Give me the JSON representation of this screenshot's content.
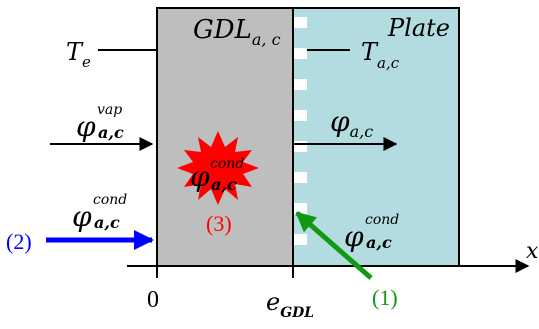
{
  "regions": {
    "gdl": {
      "base": "GDL",
      "sub": "a, c",
      "fill": "#bebebe"
    },
    "plate": {
      "label": "Plate",
      "fill": "#b2dce0"
    }
  },
  "temperatures": {
    "left": {
      "base": "T",
      "sub": "e"
    },
    "right": {
      "base": "T",
      "sub": "a,c"
    }
  },
  "fluxes": {
    "vapor_in": {
      "base": "φ",
      "sub": "a,c",
      "sup": "vap"
    },
    "cond_in": {
      "base": "φ",
      "sub": "a,c",
      "sup": "cond"
    },
    "plate_out": {
      "base": "φ",
      "sub": "a,c"
    },
    "condensation": {
      "base": "φ",
      "sub": "a,c",
      "sup": "cond"
    },
    "plate_cond": {
      "base": "φ",
      "sub": "a,c",
      "sup": "cond"
    }
  },
  "axis": {
    "x_label": "x",
    "origin_label": "0",
    "edge": {
      "base": "e",
      "sub": "GDL"
    }
  },
  "callouts": {
    "one": {
      "label": "(1)",
      "color": "#119911"
    },
    "two": {
      "label": "(2)",
      "color": "#0000ff"
    },
    "three": {
      "label": "(3)",
      "color": "#ff0000"
    }
  }
}
